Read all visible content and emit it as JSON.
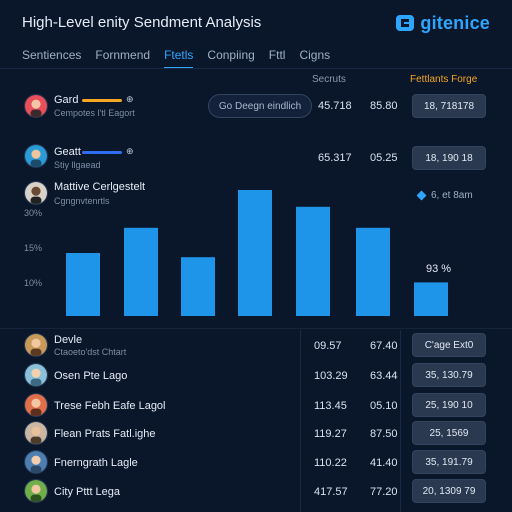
{
  "header": {
    "title": "High-Level enity Sendment Analysis",
    "brand": "gitenice",
    "brand_color": "#2ea6ff"
  },
  "tabs": [
    {
      "label": "Sentiences",
      "active": false
    },
    {
      "label": "Fornmend",
      "active": false
    },
    {
      "label": "Ftetls",
      "active": true
    },
    {
      "label": "Conpiing",
      "active": false
    },
    {
      "label": "Fttl",
      "active": false
    },
    {
      "label": "Cigns",
      "active": false
    }
  ],
  "columns": {
    "secruts": "Secruts",
    "fetlants": "Fettlants Forge"
  },
  "top_rows": [
    {
      "name": "Gard",
      "sub": "Cempotes l'tl Eagort",
      "bar_color": "#f5a623",
      "btn": "Go Deegn eindlich",
      "v1": "45.718",
      "v2": "85.80",
      "pill": "18, 718178"
    },
    {
      "name": "Geatt",
      "sub": "Stiy llgaead",
      "bar_color": "#2f6df0",
      "v1": "65.317",
      "v2": "05.25",
      "pill": "18, 190 18"
    }
  ],
  "chart": {
    "title": "Mattive Cerlgestelt",
    "subtitle": "Cgngnvtenrtls",
    "legend": "6, et 8am",
    "data_label": "93 %"
  },
  "chart_data": {
    "type": "bar",
    "categories": [
      "",
      "",
      "",
      "",
      "",
      "",
      "",
      ""
    ],
    "values": [
      15,
      21,
      14,
      30,
      26,
      21,
      0,
      8
    ],
    "ylim": [
      0,
      30
    ],
    "ytick_labels": [
      "30%",
      "15%",
      "10%"
    ],
    "grid": false,
    "bar_color": "#1f95ea"
  },
  "rows": [
    {
      "name": "Devle",
      "sub": "Ctaoeto'dst Chtart",
      "v1": "09.57",
      "v2": "67.40",
      "pill": "C'age Ext0"
    },
    {
      "name": "Osen Pte Lago",
      "sub": "",
      "v1": "103.29",
      "v2": "63.44",
      "pill": "35, 130.79"
    },
    {
      "name": "Trese Febh Eafe Lagol",
      "sub": "",
      "v1": "113.45",
      "v2": "05.10",
      "pill": "25, 190 10"
    },
    {
      "name": "Flean Prats Fatl.ighe",
      "sub": "",
      "v1": "119.27",
      "v2": "87.50",
      "pill": "25, 1569"
    },
    {
      "name": "Fnerngrath Lagle",
      "sub": "",
      "v1": "110.22",
      "v2": "41.40",
      "pill": "35, 191.79"
    },
    {
      "name": "City Pttt Lega",
      "sub": "",
      "v1": "417.57",
      "v2": "77.20",
      "pill": "20, 1309 79"
    }
  ]
}
